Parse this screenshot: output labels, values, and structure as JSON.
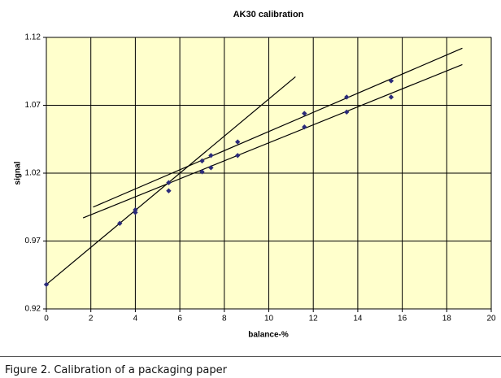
{
  "chart_data": {
    "type": "scatter",
    "title": "AK30 calibration",
    "x_label": "balance-%",
    "y_label": "signal",
    "xlim": [
      0,
      20
    ],
    "xticks": [
      0,
      2,
      4,
      6,
      8,
      10,
      12,
      14,
      16,
      18,
      20
    ],
    "ylim": [
      0.92,
      1.12
    ],
    "yticks": [
      0.92,
      0.97,
      1.02,
      1.07,
      1.12
    ],
    "grid": true,
    "series": [
      {
        "color": "#2b2b7a",
        "x": [
          0,
          3.3,
          4.0,
          4.0,
          5.5,
          5.5,
          7.0,
          7.0,
          7.4,
          7.4,
          8.6,
          8.6,
          11.6,
          11.6,
          13.5,
          13.5,
          15.5,
          15.5
        ],
        "values": [
          0.938,
          0.983,
          0.993,
          0.991,
          1.013,
          1.007,
          1.029,
          1.021,
          1.033,
          1.024,
          1.043,
          1.033,
          1.064,
          1.054,
          1.076,
          1.065,
          1.088,
          1.076
        ]
      }
    ],
    "lines": [
      {
        "color": "#000000",
        "x": [
          0,
          11.2
        ],
        "values": [
          0.938,
          1.091
        ]
      },
      {
        "color": "#000000",
        "x": [
          2.1,
          18.7
        ],
        "values": [
          0.995,
          1.112
        ]
      },
      {
        "color": "#000000",
        "x": [
          1.65,
          18.7
        ],
        "values": [
          0.987,
          1.1
        ]
      }
    ]
  },
  "caption": "Figure 2. Calibration of a packaging paper"
}
